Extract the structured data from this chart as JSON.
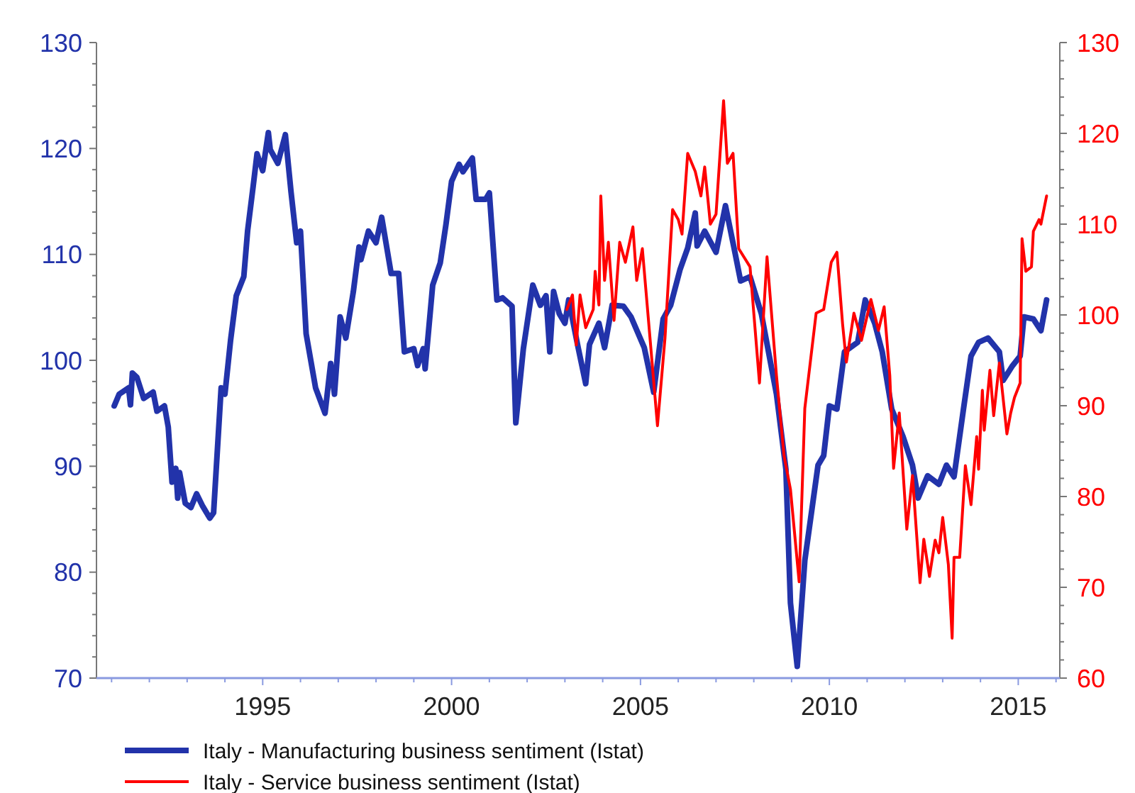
{
  "chart_data": {
    "type": "line",
    "legend": "bottom",
    "grid": false,
    "xlim": [
      1990.6,
      2016.1
    ],
    "ylim": [
      70,
      130
    ],
    "y2lim": [
      60,
      130
    ],
    "xticks": [
      {
        "value": 1991,
        "label": null
      },
      {
        "value": 1992,
        "label": null
      },
      {
        "value": 1993,
        "label": null
      },
      {
        "value": 1994,
        "label": null
      },
      {
        "value": 1995,
        "label": "1995"
      },
      {
        "value": 1996,
        "label": null
      },
      {
        "value": 1997,
        "label": null
      },
      {
        "value": 1998,
        "label": null
      },
      {
        "value": 1999,
        "label": null
      },
      {
        "value": 2000,
        "label": "2000"
      },
      {
        "value": 2001,
        "label": null
      },
      {
        "value": 2002,
        "label": null
      },
      {
        "value": 2003,
        "label": null
      },
      {
        "value": 2004,
        "label": null
      },
      {
        "value": 2005,
        "label": "2005"
      },
      {
        "value": 2006,
        "label": null
      },
      {
        "value": 2007,
        "label": null
      },
      {
        "value": 2008,
        "label": null
      },
      {
        "value": 2009,
        "label": null
      },
      {
        "value": 2010,
        "label": "2010"
      },
      {
        "value": 2011,
        "label": null
      },
      {
        "value": 2012,
        "label": null
      },
      {
        "value": 2013,
        "label": null
      },
      {
        "value": 2014,
        "label": null
      },
      {
        "value": 2015,
        "label": "2015"
      },
      {
        "value": 2016,
        "label": null
      }
    ],
    "yticks": [
      70,
      {
        "value": 72,
        "label": null
      },
      {
        "value": 74,
        "label": null
      },
      {
        "value": 76,
        "label": null
      },
      {
        "value": 78,
        "label": null
      },
      80,
      {
        "value": 82,
        "label": null
      },
      {
        "value": 84,
        "label": null
      },
      {
        "value": 86,
        "label": null
      },
      {
        "value": 88,
        "label": null
      },
      90,
      {
        "value": 92,
        "label": null
      },
      {
        "value": 94,
        "label": null
      },
      {
        "value": 96,
        "label": null
      },
      {
        "value": 98,
        "label": null
      },
      100,
      {
        "value": 102,
        "label": null
      },
      {
        "value": 104,
        "label": null
      },
      {
        "value": 106,
        "label": null
      },
      {
        "value": 108,
        "label": null
      },
      110,
      {
        "value": 112,
        "label": null
      },
      {
        "value": 114,
        "label": null
      },
      {
        "value": 116,
        "label": null
      },
      {
        "value": 118,
        "label": null
      },
      120,
      {
        "value": 122,
        "label": null
      },
      {
        "value": 124,
        "label": null
      },
      {
        "value": 126,
        "label": null
      },
      {
        "value": 128,
        "label": null
      },
      130
    ],
    "y2ticks": [
      60,
      {
        "value": 62,
        "label": null
      },
      {
        "value": 64,
        "label": null
      },
      {
        "value": 66,
        "label": null
      },
      {
        "value": 68,
        "label": null
      },
      70,
      {
        "value": 72,
        "label": null
      },
      {
        "value": 74,
        "label": null
      },
      {
        "value": 76,
        "label": null
      },
      {
        "value": 78,
        "label": null
      },
      80,
      {
        "value": 82,
        "label": null
      },
      {
        "value": 84,
        "label": null
      },
      {
        "value": 86,
        "label": null
      },
      {
        "value": 88,
        "label": null
      },
      90,
      {
        "value": 92,
        "label": null
      },
      {
        "value": 94,
        "label": null
      },
      {
        "value": 96,
        "label": null
      },
      {
        "value": 98,
        "label": null
      },
      100,
      {
        "value": 102,
        "label": null
      },
      {
        "value": 104,
        "label": null
      },
      {
        "value": 106,
        "label": null
      },
      {
        "value": 108,
        "label": null
      },
      110,
      {
        "value": 112,
        "label": null
      },
      {
        "value": 114,
        "label": null
      },
      {
        "value": 116,
        "label": null
      },
      {
        "value": 118,
        "label": null
      },
      120,
      {
        "value": 122,
        "label": null
      },
      {
        "value": 124,
        "label": null
      },
      {
        "value": 126,
        "label": null
      },
      {
        "value": 128,
        "label": null
      },
      130
    ],
    "series": [
      {
        "name": "Italy - Manufacturing business sentiment (Istat)",
        "color": "#2233aa",
        "x": [
          1991.07,
          1991.2,
          1991.45,
          1991.5,
          1991.55,
          1991.67,
          1991.85,
          1992.1,
          1992.2,
          1992.4,
          1992.5,
          1992.6,
          1992.7,
          1992.75,
          1992.8,
          1992.95,
          1993.1,
          1993.25,
          1993.4,
          1993.6,
          1993.7,
          1993.9,
          1994.0,
          1994.15,
          1994.3,
          1994.5,
          1994.6,
          1994.75,
          1994.85,
          1995.0,
          1995.15,
          1995.2,
          1995.4,
          1995.6,
          1995.75,
          1995.9,
          1996.0,
          1996.15,
          1996.4,
          1996.65,
          1996.8,
          1996.9,
          1997.05,
          1997.2,
          1997.4,
          1997.55,
          1997.6,
          1997.8,
          1998.0,
          1998.15,
          1998.4,
          1998.6,
          1998.75,
          1999.0,
          1999.1,
          1999.25,
          1999.3,
          1999.5,
          1999.7,
          1999.85,
          2000.0,
          2000.2,
          2000.3,
          2000.55,
          2000.65,
          2000.9,
          2001.0,
          2001.2,
          2001.35,
          2001.6,
          2001.7,
          2001.9,
          2002.15,
          2002.35,
          2002.5,
          2002.6,
          2002.7,
          2002.85,
          2003.0,
          2003.1,
          2003.35,
          2003.55,
          2003.65,
          2003.9,
          2004.05,
          2004.25,
          2004.55,
          2004.75,
          2005.1,
          2005.35,
          2005.6,
          2005.8,
          2006.05,
          2006.25,
          2006.45,
          2006.5,
          2006.7,
          2007.0,
          2007.25,
          2007.5,
          2007.65,
          2007.9,
          2008.2,
          2008.6,
          2008.85,
          2008.97,
          2009.15,
          2009.35,
          2009.7,
          2009.85,
          2010.0,
          2010.2,
          2010.4,
          2010.75,
          2010.95,
          2011.2,
          2011.4,
          2011.65,
          2011.95,
          2012.2,
          2012.35,
          2012.6,
          2012.9,
          2013.1,
          2013.3,
          2013.55,
          2013.75,
          2013.95,
          2014.2,
          2014.5,
          2014.6,
          2014.85,
          2015.05,
          2015.15,
          2015.4,
          2015.6,
          2015.75
        ],
        "values": [
          95.7,
          96.8,
          97.4,
          95.8,
          98.8,
          98.4,
          96.4,
          97.0,
          95.2,
          95.7,
          93.7,
          88.5,
          89.8,
          87.0,
          89.4,
          86.5,
          86.1,
          87.4,
          86.3,
          85.1,
          85.6,
          97.4,
          96.8,
          101.9,
          106.1,
          107.9,
          112.2,
          116.5,
          119.5,
          117.9,
          121.5,
          119.9,
          118.6,
          121.3,
          115.9,
          111.1,
          112.2,
          102.5,
          97.4,
          95.0,
          99.7,
          96.8,
          104.1,
          102.1,
          106.5,
          110.7,
          109.5,
          112.2,
          111.1,
          113.5,
          108.2,
          108.2,
          100.8,
          101.1,
          99.5,
          101.1,
          99.2,
          107.1,
          109.2,
          112.8,
          116.9,
          118.5,
          117.8,
          119.1,
          115.2,
          115.2,
          115.8,
          105.7,
          105.9,
          105.1,
          94.1,
          101.1,
          107.1,
          105.2,
          106.1,
          100.8,
          106.5,
          104.4,
          103.5,
          105.7,
          101.2,
          97.8,
          101.5,
          103.5,
          101.2,
          105.2,
          105.1,
          104.1,
          101.2,
          97.0,
          103.9,
          105.2,
          108.6,
          110.6,
          113.9,
          110.8,
          112.2,
          110.2,
          114.6,
          110.2,
          107.5,
          107.9,
          104.4,
          96.8,
          89.7,
          77.1,
          71.1,
          81.1,
          90.1,
          91.0,
          95.7,
          95.4,
          100.8,
          101.7,
          105.7,
          103.5,
          100.8,
          95.4,
          92.8,
          90.1,
          87.0,
          89.1,
          88.3,
          90.1,
          89.0,
          95.4,
          100.4,
          101.7,
          102.1,
          100.8,
          98.1,
          99.5,
          100.4,
          104.1,
          103.9,
          102.8,
          105.7
        ]
      },
      {
        "name": "Italy - Service business sentiment (Istat)",
        "color": "#ff0000",
        "axis": "y2",
        "x": [
          2003.05,
          2003.2,
          2003.3,
          2003.4,
          2003.55,
          2003.75,
          2003.8,
          2003.9,
          2003.95,
          2004.05,
          2004.15,
          2004.3,
          2004.45,
          2004.6,
          2004.8,
          2004.9,
          2005.05,
          2005.45,
          2005.65,
          2005.85,
          2006.0,
          2006.1,
          2006.25,
          2006.45,
          2006.6,
          2006.7,
          2006.85,
          2007.0,
          2007.2,
          2007.3,
          2007.45,
          2007.6,
          2007.9,
          2008.15,
          2008.35,
          2008.6,
          2008.8,
          2008.97,
          2009.2,
          2009.35,
          2009.65,
          2009.85,
          2010.05,
          2010.2,
          2010.35,
          2010.45,
          2010.65,
          2010.85,
          2011.1,
          2011.3,
          2011.45,
          2011.6,
          2011.7,
          2011.85,
          2012.05,
          2012.2,
          2012.4,
          2012.5,
          2012.65,
          2012.8,
          2012.9,
          2013.0,
          2013.15,
          2013.25,
          2013.3,
          2013.45,
          2013.6,
          2013.75,
          2013.9,
          2013.95,
          2014.05,
          2014.1,
          2014.25,
          2014.35,
          2014.5,
          2014.7,
          2014.8,
          2014.9,
          2015.05,
          2015.1,
          2015.2,
          2015.35,
          2015.4,
          2015.55,
          2015.6,
          2015.75
        ],
        "values": [
          100.6,
          102.2,
          96.7,
          102.2,
          98.6,
          100.6,
          104.8,
          101.1,
          113.1,
          103.8,
          108.0,
          99.4,
          108.0,
          105.8,
          109.7,
          103.8,
          107.3,
          87.8,
          97.5,
          111.6,
          110.5,
          108.9,
          117.8,
          115.8,
          113.1,
          116.3,
          110.0,
          111.1,
          123.6,
          116.7,
          117.8,
          107.3,
          105.3,
          92.5,
          106.4,
          93.3,
          84.5,
          80.8,
          70.6,
          89.7,
          100.2,
          100.6,
          105.8,
          106.9,
          99.0,
          94.8,
          100.2,
          97.2,
          101.7,
          98.3,
          100.9,
          93.3,
          83.1,
          89.2,
          76.4,
          82.3,
          70.5,
          75.3,
          71.2,
          75.2,
          73.8,
          77.7,
          72.5,
          64.4,
          73.3,
          73.3,
          83.4,
          79.1,
          86.6,
          83.0,
          91.7,
          87.3,
          93.9,
          88.9,
          94.7,
          86.9,
          89.2,
          90.9,
          92.5,
          108.4,
          104.8,
          105.3,
          109.2,
          110.5,
          110.0,
          113.1
        ]
      }
    ]
  }
}
